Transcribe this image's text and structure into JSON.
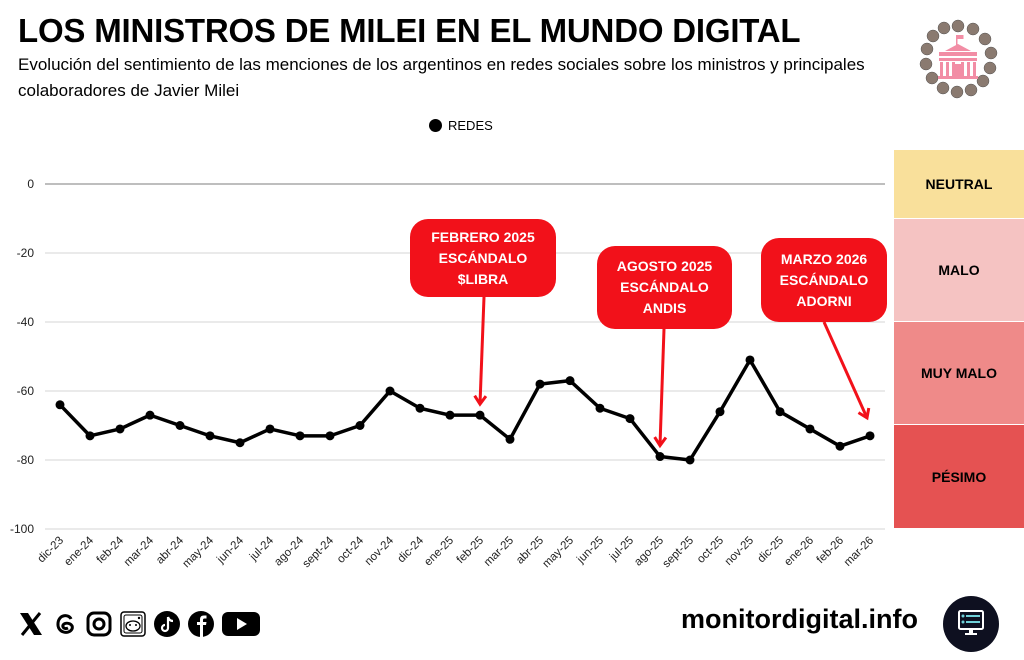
{
  "header": {
    "title": "LOS MINISTROS DE MILEI EN EL MUNDO DIGITAL",
    "subtitle": "Evolución del sentimiento de las menciones de los argentinos en redes sociales sobre los ministros y principales colaboradores de Javier Milei"
  },
  "legend": {
    "label": "REDES",
    "color": "#000000"
  },
  "bands": [
    {
      "label": "NEUTRAL",
      "color": "#f9e09b"
    },
    {
      "label": "MALO",
      "color": "#f5c3c2"
    },
    {
      "label": "MUY MALO",
      "color": "#ef8a89"
    },
    {
      "label": "PÉSIMO",
      "color": "#e55252"
    }
  ],
  "callouts": [
    {
      "lines": [
        "FEBRERO 2025",
        "ESCÁNDALO",
        "$LIBRA"
      ],
      "target": "feb-25"
    },
    {
      "lines": [
        "AGOSTO 2025",
        "ESCÁNDALO",
        "ANDIS"
      ],
      "target": "ago-25"
    },
    {
      "lines": [
        "MARZO 2026",
        "ESCÁNDALO",
        "ADORNI"
      ],
      "target": "mar-26"
    }
  ],
  "callout_color": "#f2111a",
  "footer": {
    "social_icons": [
      "x-icon",
      "threads-icon",
      "instagram-icon",
      "reddit-icon",
      "tiktok-icon",
      "facebook-icon",
      "youtube-icon"
    ],
    "brand": "monitordigital.info"
  },
  "chart_data": {
    "type": "line",
    "title": "LOS MINISTROS DE MILEI EN EL MUNDO DIGITAL",
    "xlabel": "",
    "ylabel": "",
    "ylim": [
      -100,
      0
    ],
    "yticks": [
      0,
      -20,
      -40,
      -60,
      -80,
      -100
    ],
    "grid": true,
    "legend_position": "top-center",
    "categories": [
      "dic-23",
      "ene-24",
      "feb-24",
      "mar-24",
      "abr-24",
      "may-24",
      "jun-24",
      "jul-24",
      "ago-24",
      "sept-24",
      "oct-24",
      "nov-24",
      "dic-24",
      "ene-25",
      "feb-25",
      "mar-25",
      "abr-25",
      "may-25",
      "jun-25",
      "jul-25",
      "ago-25",
      "sept-25",
      "oct-25",
      "nov-25",
      "dic-25",
      "ene-26",
      "feb-26",
      "mar-26"
    ],
    "series": [
      {
        "name": "REDES",
        "color": "#000000",
        "values": [
          -64,
          -73,
          -71,
          -67,
          -70,
          -73,
          -75,
          -71,
          -73,
          -73,
          -70,
          -60,
          -65,
          -67,
          -67,
          -74,
          -58,
          -57,
          -65,
          -68,
          -79,
          -80,
          -66,
          -51,
          -66,
          -71,
          -76,
          -73
        ]
      }
    ]
  }
}
